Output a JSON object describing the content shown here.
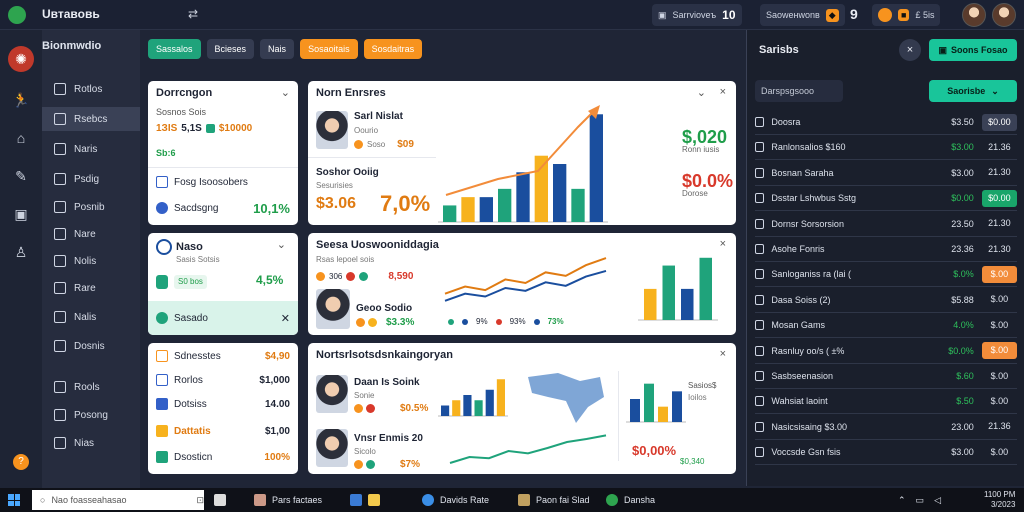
{
  "app": {
    "title": "Uвтавовь"
  },
  "topbar": {
    "chip1": "Sаrrvioveъ",
    "chip1_num": "10",
    "chip2": "Sаoweнwonв",
    "chip3_num": "9",
    "chip4": "£ 5is"
  },
  "sidebar": {
    "heading": "Bionmwdio",
    "items": [
      {
        "label": "Rotlos"
      },
      {
        "label": "Rsebcs"
      },
      {
        "label": "Naris"
      },
      {
        "label": "Psdig"
      },
      {
        "label": "Posnib"
      },
      {
        "label": "Nare"
      },
      {
        "label": "Nolis"
      },
      {
        "label": "Rare"
      },
      {
        "label": "Nalis"
      },
      {
        "label": "Dosnis"
      },
      {
        "label": "Rools"
      },
      {
        "label": "Posong"
      },
      {
        "label": "Nias"
      }
    ]
  },
  "filters": [
    {
      "label": "Sassalos",
      "color": "#1fa37b"
    },
    {
      "label": "Bcieses",
      "color": "#353c51"
    },
    {
      "label": "Nais",
      "color": "#353c51"
    },
    {
      "label": "Sosaoitais",
      "color": "#f7931e"
    },
    {
      "label": "Sosdaitras",
      "color": "#f7931e"
    }
  ],
  "card_overview": {
    "title": "Dorrcngon",
    "line1": "Sosnos Sois",
    "v1": "1ЗIS",
    "v2": "5,1S",
    "v3": "$10000",
    "v4": "Sb:6",
    "row1": "Fosg Isoosobers",
    "row2": "Sacdsgng",
    "row2_val": "10,1%"
  },
  "card_news": {
    "title": "Norn Enrsres",
    "name": "Sarl Nislat",
    "sub": "Oourio",
    "val": "$09",
    "company": "Soshor Ooiig",
    "sub2": "Sesurisies",
    "big1": "$3.06",
    "big2": "7,0%",
    "kpi1": "$,020",
    "kpi1_sub": "Ronn iusis",
    "kpi2": "$0.0%",
    "kpi2_sub": "Dorose"
  },
  "card_user": {
    "title": "Naso",
    "sub": "Sasis Sotsis",
    "pill": "S0 bos",
    "val": "4,5%",
    "btn": "Sasado"
  },
  "card_trend": {
    "title": "Seesa Uoswooniddagia",
    "sub": "Rsas lepoel sois",
    "vals": [
      "306",
      "8,590"
    ],
    "name": "Geoo Sodio",
    "val": "$3.3%",
    "legend": [
      "9%",
      "93%",
      "73%"
    ]
  },
  "card_list": {
    "items": [
      {
        "label": "Sdnesstes",
        "val": "$4,90"
      },
      {
        "label": "Rorlos",
        "val": "$1,000"
      },
      {
        "label": "Dotsiss",
        "val": "14.00"
      },
      {
        "label": "Dattatis",
        "val": "$1,00"
      },
      {
        "label": "Dsosticn",
        "val": "100%"
      }
    ]
  },
  "card_bottom": {
    "title": "Nortsrlsotsdsnkaingoryan",
    "p1_name": "Daan Is Soink",
    "p1_sub": "Sonie",
    "p1_val": "$0.5%",
    "p2_name": "Vnsr Enmis 20",
    "p2_sub": "Sicolo",
    "p2_val": "$7%",
    "s1": "Sasios$",
    "s1_sub": "Ioilos",
    "kpi": "$0,00%",
    "kpi_sub": "$0,340"
  },
  "right_panel": {
    "title": "Sarisbs",
    "button": "Soons Fosao",
    "search": "Darspsgsooo",
    "filter_btn": "Saorisbe",
    "rows": [
      {
        "name": "Doosra",
        "v1": "$3.50",
        "v2": "$0.00",
        "v1_color": "#dde2ec",
        "v2_bg": "#3a4156",
        "v2_color": "#ffffff"
      },
      {
        "name": "Ranlonsalios $160",
        "v1": "$3.00",
        "v2": "21.36",
        "v1_color": "#2ec05c",
        "v2_bg": "transparent",
        "v2_color": "#dde2ec"
      },
      {
        "name": "Bosnan Saraha",
        "v1": "$3.00",
        "v2": "21.30",
        "v1_color": "#dde2ec",
        "v2_bg": "transparent",
        "v2_color": "#dde2ec"
      },
      {
        "name": "Dsstar Lshwbus Sstg",
        "v1": "$0.00",
        "v2": "$0.00",
        "v1_color": "#2ec05c",
        "v2_bg": "#19a56a",
        "v2_color": "#ffffff"
      },
      {
        "name": "Dornsr Sorsorsion",
        "v1": "23.50",
        "v2": "21.30",
        "v1_color": "#dde2ec",
        "v2_bg": "transparent",
        "v2_color": "#dde2ec"
      },
      {
        "name": "Asohe Fonris",
        "v1": "23.36",
        "v2": "21.30",
        "v1_color": "#dde2ec",
        "v2_bg": "transparent",
        "v2_color": "#dde2ec"
      },
      {
        "name": "Sanloganiss ra (lai (",
        "v1": "$.0%",
        "v2": "$.00",
        "v1_color": "#2ec05c",
        "v2_bg": "#f28c3a",
        "v2_color": "#ffffff"
      },
      {
        "name": "Dasa Soiss (2)",
        "v1": "$5.88",
        "v2": "$.00",
        "v1_color": "#dde2ec",
        "v2_bg": "transparent",
        "v2_color": "#dde2ec"
      },
      {
        "name": "Mosan Gams",
        "v1": "4.0%",
        "v2": "$.00",
        "v1_color": "#2ec05c",
        "v2_bg": "transparent",
        "v2_color": "#dde2ec"
      },
      {
        "name": "Rasnluy oo/s ( ±%",
        "v1": "$0.0%",
        "v2": "$.00",
        "v1_color": "#2ec05c",
        "v2_bg": "#f28c3a",
        "v2_color": "#ffffff"
      },
      {
        "name": "Sasbseenasion",
        "v1": "$.60",
        "v2": "$.00",
        "v1_color": "#2ec05c",
        "v2_bg": "transparent",
        "v2_color": "#dde2ec"
      },
      {
        "name": "Wahsiat laoint",
        "v1": "$.50",
        "v2": "$.00",
        "v1_color": "#2ec05c",
        "v2_bg": "transparent",
        "v2_color": "#dde2ec"
      },
      {
        "name": "Nasicsisaing $3.00",
        "v1": "23.00",
        "v2": "21.36",
        "v1_color": "#dde2ec",
        "v2_bg": "transparent",
        "v2_color": "#dde2ec"
      },
      {
        "name": "Voccsde Gsn fsis",
        "v1": "$3.00",
        "v2": "$.00",
        "v1_color": "#dde2ec",
        "v2_bg": "transparent",
        "v2_color": "#dde2ec"
      }
    ]
  },
  "charts": {
    "bars_main": [
      {
        "v": 2,
        "c": "#1fa37b"
      },
      {
        "v": 3,
        "c": "#f7b21e"
      },
      {
        "v": 3,
        "c": "#1a4e9e"
      },
      {
        "v": 4,
        "c": "#1fa37b"
      },
      {
        "v": 6,
        "c": "#1a4e9e"
      },
      {
        "v": 8,
        "c": "#f7b21e"
      },
      {
        "v": 7,
        "c": "#1a4e9e"
      },
      {
        "v": 4,
        "c": "#1fa37b"
      },
      {
        "v": 13,
        "c": "#1a4e9e"
      }
    ],
    "line_trend": [
      3,
      4,
      3.5,
      5,
      4.5,
      6,
      5.5,
      7,
      8
    ],
    "line_trend2": [
      2,
      3,
      2.6,
      3.8,
      3.4,
      4.6,
      4.1,
      5.4,
      6.2
    ],
    "bars_trend": [
      {
        "v": 4,
        "c": "#f7b21e"
      },
      {
        "v": 7,
        "c": "#1fa37b"
      },
      {
        "v": 4,
        "c": "#1a4e9e"
      },
      {
        "v": 8,
        "c": "#1fa37b"
      }
    ],
    "bars_bottom": [
      {
        "v": 2,
        "c": "#1a4e9e"
      },
      {
        "v": 3,
        "c": "#f7b21e"
      },
      {
        "v": 4,
        "c": "#1a4e9e"
      },
      {
        "v": 3,
        "c": "#1fa37b"
      },
      {
        "v": 5,
        "c": "#1a4e9e"
      },
      {
        "v": 7,
        "c": "#f7b21e"
      }
    ],
    "line_bottom": [
      1,
      2,
      1.8,
      3,
      2.6,
      3.5,
      4.5,
      5,
      5.6
    ],
    "bars_side": [
      {
        "v": 3,
        "c": "#1a4e9e"
      },
      {
        "v": 5,
        "c": "#1fa37b"
      },
      {
        "v": 2,
        "c": "#f7b21e"
      },
      {
        "v": 4,
        "c": "#1a4e9e"
      }
    ]
  },
  "taskbar": {
    "search": "Nao foasseahasao",
    "items": [
      "Pars faсtaes",
      "Davids Rate",
      "Paon fai Slad",
      "Dansha"
    ],
    "clock": "1100 PM",
    "date": "3/2023"
  }
}
